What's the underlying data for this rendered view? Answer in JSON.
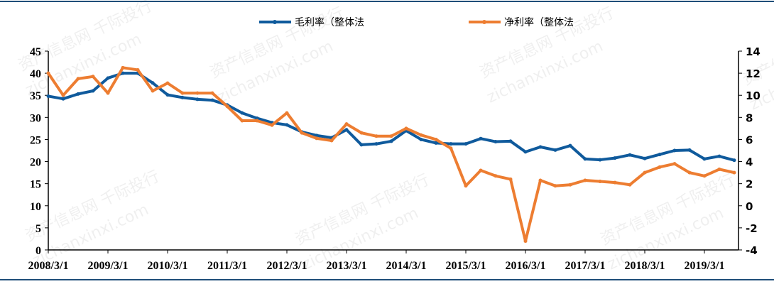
{
  "chart_data": {
    "type": "line",
    "title": "",
    "x": [
      "2008/3",
      "2008/6",
      "2008/9",
      "2008/12",
      "2009/3",
      "2009/6",
      "2009/9",
      "2009/12",
      "2010/3",
      "2010/6",
      "2010/9",
      "2010/12",
      "2011/3",
      "2011/6",
      "2011/9",
      "2011/12",
      "2012/3",
      "2012/6",
      "2012/9",
      "2012/12",
      "2013/3",
      "2013/6",
      "2013/9",
      "2013/12",
      "2014/3",
      "2014/6",
      "2014/9",
      "2014/12",
      "2015/3",
      "2015/6",
      "2015/9",
      "2015/12",
      "2016/3",
      "2016/6",
      "2016/9",
      "2016/12",
      "2017/3",
      "2017/6",
      "2017/9",
      "2017/12",
      "2018/3",
      "2018/6",
      "2018/9",
      "2018/12",
      "2019/3",
      "2019/6",
      "2019/9"
    ],
    "x_tick_labels": [
      "2008/3/1",
      "2009/3/1",
      "2010/3/1",
      "2011/3/1",
      "2012/3/1",
      "2013/3/1",
      "2014/3/1",
      "2015/3/1",
      "2016/3/1",
      "2017/3/1",
      "2018/3/1",
      "2019/3/1"
    ],
    "series": [
      {
        "name": "毛利率（整体法",
        "axis": "left",
        "color": "#0f5a9c",
        "values": [
          34.8,
          34.2,
          35.3,
          36.0,
          38.9,
          40.0,
          40.0,
          37.8,
          35.1,
          34.5,
          34.1,
          33.9,
          32.8,
          31.0,
          29.8,
          28.8,
          28.3,
          26.7,
          25.9,
          25.4,
          27.2,
          23.8,
          24.0,
          24.6,
          27.0,
          25.0,
          24.2,
          24.0,
          24.0,
          25.2,
          24.5,
          24.6,
          22.2,
          23.3,
          22.6,
          23.6,
          20.6,
          20.4,
          20.8,
          21.5,
          20.7,
          21.6,
          22.5,
          22.6,
          20.6,
          21.2,
          20.3
        ]
      },
      {
        "name": "净利率（整体法",
        "axis": "right",
        "color": "#ed7d31",
        "values": [
          12.0,
          10.0,
          11.5,
          11.7,
          10.2,
          12.5,
          12.3,
          10.4,
          11.1,
          10.2,
          10.2,
          10.2,
          9.0,
          7.7,
          7.7,
          7.3,
          8.4,
          6.6,
          6.1,
          5.9,
          7.4,
          6.6,
          6.3,
          6.3,
          7.0,
          6.4,
          6.0,
          5.2,
          1.8,
          3.2,
          2.7,
          2.4,
          -3.2,
          2.3,
          1.8,
          1.9,
          2.3,
          2.2,
          2.1,
          1.9,
          3.0,
          3.5,
          3.8,
          3.0,
          2.7,
          3.3,
          3.0
        ]
      }
    ],
    "ylim_left": [
      0,
      45
    ],
    "yticks_left": [
      "0",
      "5",
      "10",
      "15",
      "20",
      "25",
      "30",
      "35",
      "40",
      "45"
    ],
    "ylim_right": [
      -4,
      14
    ],
    "yticks_right": [
      "-4",
      "-2",
      "0",
      "2",
      "4",
      "6",
      "8",
      "10",
      "12",
      "14"
    ],
    "legend": "top-center",
    "grid": false,
    "watermark": [
      "资产信息网 千际投行",
      "zichanxinxi.com"
    ]
  }
}
